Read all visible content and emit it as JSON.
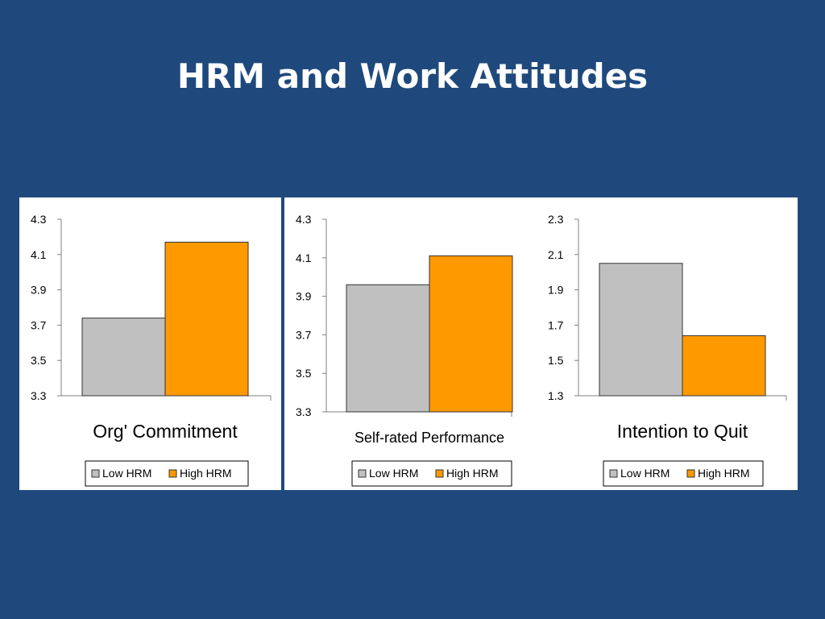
{
  "slide": {
    "title": "HRM and Work Attitudes"
  },
  "colors": {
    "background": "#1f497d",
    "low_hrm": "#c0c0c0",
    "high_hrm": "#ff9900",
    "axis": "#808080",
    "bar_stroke": "#333333"
  },
  "legend": [
    "Low HRM",
    "High HRM"
  ],
  "chart_data": [
    {
      "type": "bar",
      "title": "Org' Commitment",
      "categories": [
        "Org' Commitment"
      ],
      "series": [
        {
          "name": "Low HRM",
          "values": [
            3.74
          ]
        },
        {
          "name": "High HRM",
          "values": [
            4.17
          ]
        }
      ],
      "ylim": [
        3.3,
        4.3
      ],
      "yticks": [
        "4.3",
        "4.1",
        "3.9",
        "3.7",
        "3.5",
        "3.3"
      ],
      "grid": false,
      "legend_position": "bottom"
    },
    {
      "type": "bar",
      "title": "Self-rated Performance",
      "categories": [
        "Self-rated Performance"
      ],
      "series": [
        {
          "name": "Low HRM",
          "values": [
            3.96
          ]
        },
        {
          "name": "High HRM",
          "values": [
            4.11
          ]
        }
      ],
      "ylim": [
        3.3,
        4.3
      ],
      "yticks": [
        "4.3",
        "4.1",
        "3.9",
        "3.7",
        "3.5",
        "3.3"
      ],
      "grid": false,
      "legend_position": "bottom"
    },
    {
      "type": "bar",
      "title": "Intention to Quit",
      "categories": [
        "Intention to Quit"
      ],
      "series": [
        {
          "name": "Low HRM",
          "values": [
            2.05
          ]
        },
        {
          "name": "High HRM",
          "values": [
            1.64
          ]
        }
      ],
      "ylim": [
        1.3,
        2.3
      ],
      "yticks": [
        "2.3",
        "2.1",
        "1.9",
        "1.7",
        "1.5",
        "1.3"
      ],
      "grid": false,
      "legend_position": "bottom"
    }
  ]
}
